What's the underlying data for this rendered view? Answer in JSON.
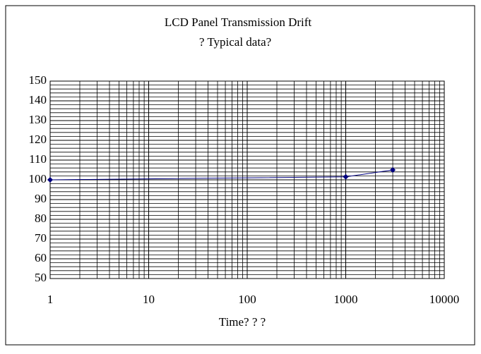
{
  "chart_data": {
    "type": "line",
    "title": "LCD Panel Transmission Drift",
    "subtitle": "? Typical data?",
    "x_label": "Time? ? ?",
    "x_scale": "log",
    "xlim": [
      1,
      10000
    ],
    "xticks": [
      1,
      10,
      100,
      1000,
      10000
    ],
    "ylim": [
      50,
      150
    ],
    "yticks": [
      50,
      60,
      70,
      80,
      90,
      100,
      110,
      120,
      130,
      140,
      150
    ],
    "y_minor_step": 2,
    "grid": true,
    "series": [
      {
        "color": "#000080",
        "x": [
          1,
          1000,
          3000
        ],
        "values": [
          100,
          101.5,
          105
        ]
      }
    ]
  }
}
